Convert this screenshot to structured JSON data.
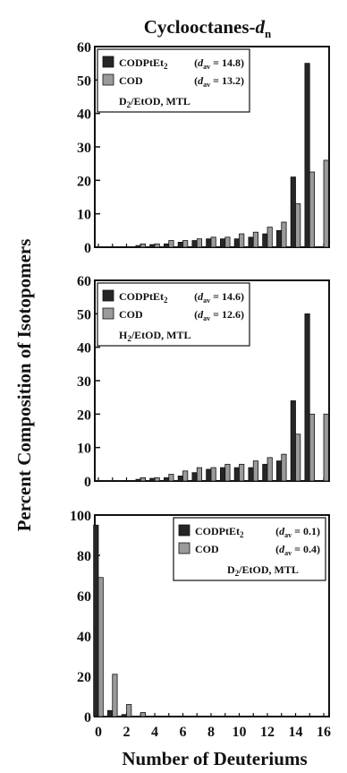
{
  "figure": {
    "title_main": "Cyclooctanes-",
    "title_d": "d",
    "title_sub": "n",
    "ylabel": "Percent Composition of Isotopomers",
    "xlabel": "Number of Deuteriums",
    "colors": {
      "dark": "#262626",
      "light": "#9a9a9a",
      "ink": "#111111"
    }
  },
  "chart_data": [
    {
      "type": "bar",
      "x": [
        0,
        1,
        2,
        3,
        4,
        5,
        6,
        7,
        8,
        9,
        10,
        11,
        12,
        13,
        14,
        15,
        16
      ],
      "ylim": [
        0,
        60
      ],
      "yticks": [
        "0",
        "10",
        "20",
        "30",
        "40",
        "50",
        "60"
      ],
      "xticks": [],
      "legend": {
        "position": "top-left",
        "items": [
          {
            "prefix": "CODPtEt",
            "sub": "2",
            "d": "d",
            "avg": "av",
            "value": "= 14.8)"
          },
          {
            "prefix": "COD",
            "sub": "",
            "d": "d",
            "avg": "av",
            "value": "= 13.2)"
          }
        ],
        "note": "D",
        "note_sub": "2",
        "note_rest": "/EtOD, MTL"
      },
      "series": [
        {
          "name": "CODPtEt2",
          "values": [
            0,
            0,
            0,
            0.5,
            0.8,
            1,
            1.5,
            2,
            2.5,
            2.5,
            2.5,
            3,
            4,
            5,
            21,
            55,
            0
          ]
        },
        {
          "name": "COD",
          "values": [
            0,
            0,
            0,
            1,
            1,
            2,
            2,
            2.5,
            3,
            3,
            4,
            4.5,
            6,
            7.5,
            13,
            22.5,
            26
          ]
        }
      ]
    },
    {
      "type": "bar",
      "x": [
        0,
        1,
        2,
        3,
        4,
        5,
        6,
        7,
        8,
        9,
        10,
        11,
        12,
        13,
        14,
        15,
        16
      ],
      "ylim": [
        0,
        60
      ],
      "yticks": [
        "0",
        "10",
        "20",
        "30",
        "40",
        "50",
        "60"
      ],
      "xticks": [],
      "legend": {
        "position": "top-left",
        "items": [
          {
            "prefix": "CODPtEt",
            "sub": "2",
            "d": "d",
            "avg": "av",
            "value": "= 14.6)"
          },
          {
            "prefix": "COD",
            "sub": "",
            "d": "d",
            "avg": "av",
            "value": "= 12.6)"
          }
        ],
        "note": "H",
        "note_sub": "2",
        "note_rest": "/EtOD, MTL"
      },
      "series": [
        {
          "name": "CODPtEt2",
          "values": [
            0,
            0,
            0,
            0.5,
            0.8,
            1,
            1.5,
            2.5,
            3.5,
            4,
            4,
            4,
            5,
            6,
            24,
            50,
            0
          ]
        },
        {
          "name": "COD",
          "values": [
            0,
            0,
            0,
            1,
            1,
            2,
            3,
            4,
            4,
            5,
            5,
            6,
            7,
            8,
            14,
            20,
            20
          ]
        }
      ]
    },
    {
      "type": "bar",
      "x": [
        0,
        1,
        2,
        3,
        4,
        5,
        6,
        7,
        8,
        9,
        10,
        11,
        12,
        13,
        14,
        15,
        16
      ],
      "ylim": [
        0,
        100
      ],
      "yticks": [
        "0",
        "20",
        "40",
        "60",
        "80",
        "100"
      ],
      "xticks": [
        "0",
        "2",
        "4",
        "6",
        "8",
        "10",
        "12",
        "14",
        "16"
      ],
      "legend": {
        "position": "top-right",
        "items": [
          {
            "prefix": "CODPtEt",
            "sub": "2",
            "d": "d",
            "avg": "av",
            "value": "= 0.1)"
          },
          {
            "prefix": "COD",
            "sub": "",
            "d": "d",
            "avg": "av",
            "value": "= 0.4)"
          }
        ],
        "note": "D",
        "note_sub": "2",
        "note_rest": "/EtOD, MTL"
      },
      "series": [
        {
          "name": "CODPtEt2",
          "values": [
            95,
            3,
            1,
            0,
            0,
            0,
            0,
            0,
            0,
            0,
            0,
            0,
            0,
            0,
            0,
            0,
            0
          ]
        },
        {
          "name": "COD",
          "values": [
            69,
            21,
            6,
            2,
            0,
            0,
            0,
            0,
            0,
            0,
            0,
            0,
            0,
            0,
            0,
            0,
            0
          ]
        }
      ]
    }
  ]
}
